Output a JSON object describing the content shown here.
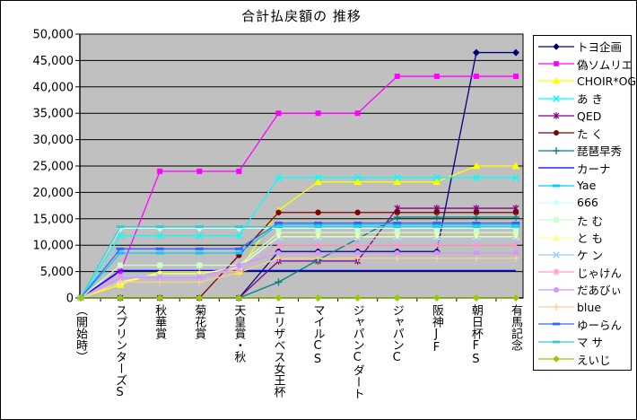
{
  "title": "合計払戻額の 推移",
  "chart_data": {
    "type": "line",
    "title": "合計払戻額の 推移",
    "xlabel": "",
    "ylabel": "",
    "ylim": [
      0,
      50000
    ],
    "ytick_step": 5000,
    "ytick_labels": [
      "0",
      "5,000",
      "10,000",
      "15,000",
      "20,000",
      "25,000",
      "30,000",
      "35,000",
      "40,000",
      "45,000",
      "50,000"
    ],
    "grid": true,
    "plot_bg": "#C0C0C0",
    "legend_position": "right",
    "categories": [
      "(開始時)",
      "スプリンターズS",
      "秋華賞",
      "菊花賞",
      "天皇賞・秋",
      "エリザベス女王杯",
      "マイルCS",
      "ジャパンCダート",
      "ジャパンC",
      "阪神JF",
      "朝日杯FS",
      "有馬記念"
    ],
    "series": [
      {
        "name": "トヨ企画",
        "color": "#000080",
        "marker": "diamond",
        "values": [
          0,
          0,
          0,
          0,
          0,
          8800,
          8800,
          8800,
          8800,
          8800,
          46500,
          46500
        ]
      },
      {
        "name": "偽ソムリエ",
        "color": "#FF00FF",
        "marker": "square",
        "values": [
          0,
          5000,
          24000,
          24000,
          24000,
          35000,
          35000,
          35000,
          42000,
          42000,
          42000,
          42000
        ]
      },
      {
        "name": "CHOIR*OG",
        "color": "#FFFF00",
        "marker": "triangle",
        "values": [
          0,
          2500,
          5000,
          5000,
          5000,
          16600,
          22000,
          22000,
          22000,
          22000,
          25000,
          25000
        ]
      },
      {
        "name": "あ き",
        "color": "#00FFFF",
        "marker": "x",
        "values": [
          0,
          11800,
          11800,
          11800,
          11800,
          22800,
          22800,
          22800,
          22800,
          22800,
          22800,
          22800
        ]
      },
      {
        "name": "QED",
        "color": "#800080",
        "marker": "asterisk",
        "values": [
          0,
          0,
          0,
          0,
          0,
          7000,
          7000,
          7000,
          17000,
          17000,
          17000,
          17000
        ]
      },
      {
        "name": "た く",
        "color": "#800000",
        "marker": "circle",
        "values": [
          0,
          0,
          0,
          0,
          8100,
          16200,
          16200,
          16200,
          16200,
          16200,
          16200,
          16200
        ]
      },
      {
        "name": "琵琶早秀",
        "color": "#008080",
        "marker": "plus",
        "values": [
          0,
          0,
          0,
          0,
          0,
          3000,
          7200,
          11200,
          15300,
          15300,
          15300,
          15300
        ]
      },
      {
        "name": "カーナ",
        "color": "#0000FF",
        "marker": "none",
        "values": [
          0,
          5200,
          5200,
          5200,
          5200,
          5200,
          5200,
          5200,
          5200,
          5200,
          5200,
          5200
        ]
      },
      {
        "name": "Yae",
        "color": "#00CCFF",
        "marker": "dash",
        "values": [
          0,
          8500,
          8500,
          8500,
          8500,
          13900,
          13900,
          13900,
          13900,
          13900,
          13900,
          13900
        ]
      },
      {
        "name": "666",
        "color": "#CCFFFF",
        "marker": "diamond",
        "values": [
          0,
          13200,
          13200,
          13200,
          13200,
          13200,
          13200,
          13200,
          13200,
          13200,
          13200,
          13200
        ]
      },
      {
        "name": "た む",
        "color": "#CCFFCC",
        "marker": "square",
        "values": [
          0,
          6200,
          6200,
          6200,
          6200,
          12400,
          12400,
          12400,
          12400,
          12400,
          12400,
          12400
        ]
      },
      {
        "name": "と も",
        "color": "#FFFF99",
        "marker": "triangle",
        "values": [
          0,
          3000,
          4600,
          4600,
          5800,
          11600,
          11600,
          11600,
          11600,
          11600,
          11600,
          11600
        ]
      },
      {
        "name": "ケ ン",
        "color": "#99CCFF",
        "marker": "x",
        "values": [
          0,
          4100,
          4100,
          4100,
          5600,
          11000,
          11000,
          11000,
          11000,
          11000,
          11000,
          11000
        ]
      },
      {
        "name": "じゃけん",
        "color": "#FF99CC",
        "marker": "asterisk",
        "values": [
          0,
          3900,
          3900,
          3900,
          5500,
          10000,
          10000,
          10000,
          10000,
          10000,
          10000,
          10000
        ]
      },
      {
        "name": "だあびぃ",
        "color": "#CC99FF",
        "marker": "circle",
        "values": [
          0,
          3800,
          3800,
          3800,
          6200,
          8500,
          8500,
          8500,
          8500,
          8500,
          8500,
          8500
        ]
      },
      {
        "name": "blue",
        "color": "#FFCC99",
        "marker": "plus",
        "values": [
          0,
          3000,
          3000,
          3000,
          4800,
          7500,
          7500,
          7500,
          7500,
          7500,
          7500,
          7500
        ]
      },
      {
        "name": "ゆーらん",
        "color": "#3366FF",
        "marker": "dash",
        "values": [
          0,
          9300,
          9300,
          9300,
          9300,
          14200,
          14200,
          14200,
          14200,
          14200,
          14200,
          14200
        ]
      },
      {
        "name": "マ サ",
        "color": "#33CCCC",
        "marker": "dash",
        "values": [
          0,
          13500,
          13500,
          13500,
          13500,
          13500,
          13500,
          13500,
          13500,
          13500,
          13500,
          13500
        ]
      },
      {
        "name": "えいじ",
        "color": "#99CC00",
        "marker": "diamond",
        "values": [
          0,
          0,
          0,
          0,
          0,
          0,
          0,
          0,
          0,
          0,
          0,
          0
        ]
      }
    ]
  }
}
